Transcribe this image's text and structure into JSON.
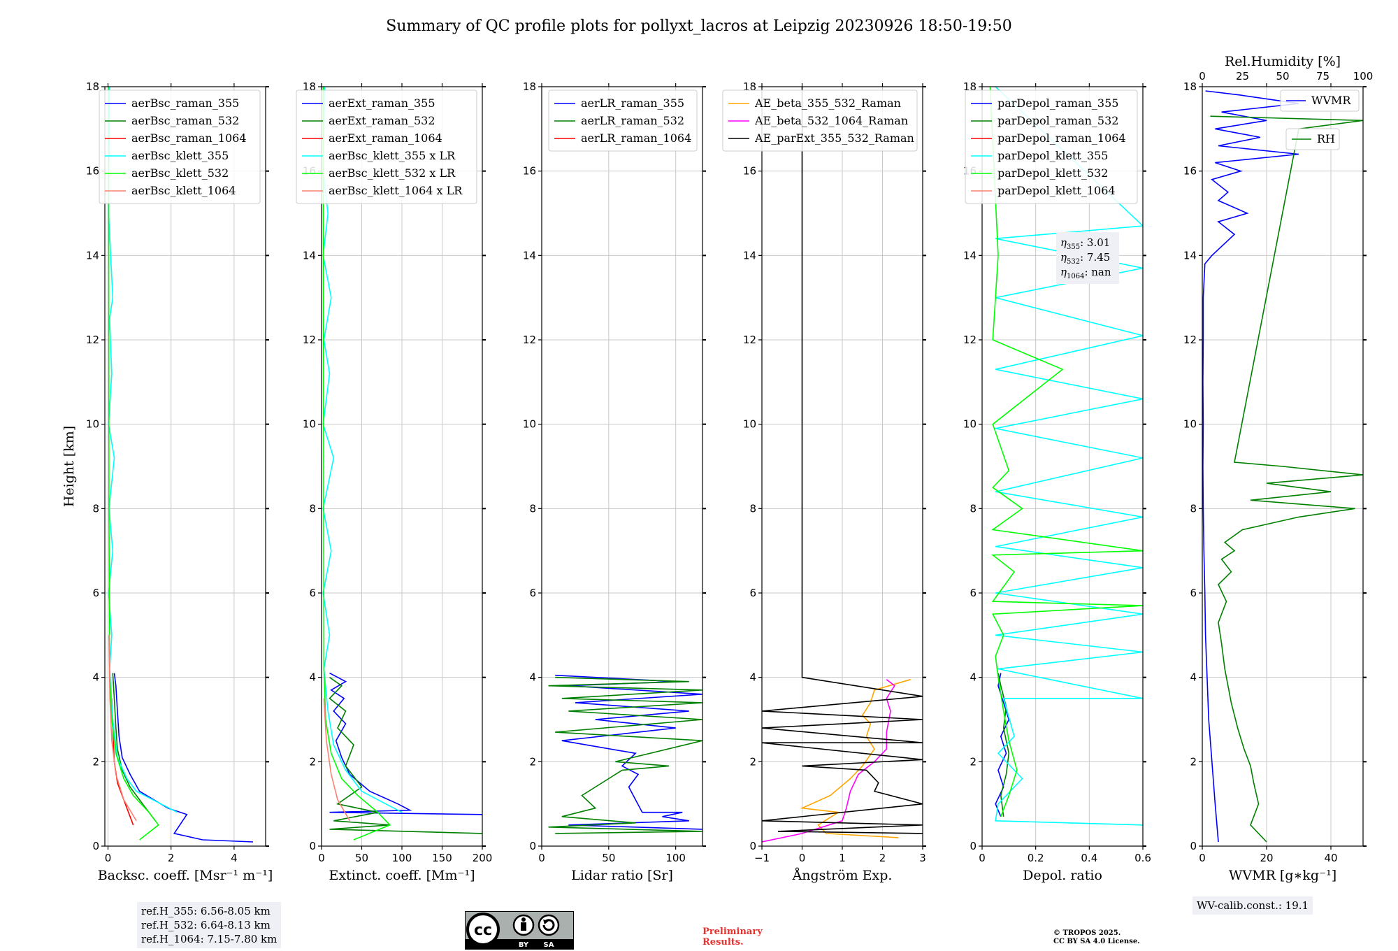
{
  "figure_title": "Summary of QC profile plots for pollyxt_lacros at Leipzig 20230926 18:50-19:50",
  "colors": {
    "blue": "#0000ff",
    "green": "#008000",
    "red": "#ff0000",
    "cyan": "#00ffff",
    "lime": "#00ff00",
    "salmon": "#fa8072",
    "orange": "#ffa500",
    "magenta": "#ff00ff",
    "black": "#000000",
    "grid": "#c8c8c8"
  },
  "chart_data": [
    {
      "type": "line",
      "xlabel": "Backsc. coeff. [Msr⁻¹ m⁻¹]",
      "ylabel": "Height [km]",
      "xlim": [
        -0.1,
        5
      ],
      "ylim": [
        0,
        18
      ],
      "xticks": [
        0,
        2,
        4
      ],
      "yticks": [
        0,
        2,
        4,
        6,
        8,
        10,
        12,
        14,
        16,
        18
      ],
      "legend_position": "top-right",
      "series": [
        {
          "name": "aerBsc_raman_355",
          "color": "#0000ff",
          "x": [
            4.6,
            3.0,
            2.1,
            2.5,
            1.9,
            1.0,
            0.7,
            0.45,
            0.35,
            0.3,
            0.25,
            0.2
          ],
          "y": [
            0.1,
            0.15,
            0.3,
            0.75,
            0.9,
            1.3,
            1.7,
            2.1,
            2.6,
            3.2,
            3.8,
            4.1
          ]
        },
        {
          "name": "aerBsc_raman_532",
          "color": "#008000",
          "x": [
            1.5,
            1.1,
            0.7,
            0.45,
            0.3,
            0.25,
            0.2,
            0.15
          ],
          "y": [
            0.6,
            1.0,
            1.4,
            1.8,
            2.3,
            2.8,
            3.5,
            4.1
          ]
        },
        {
          "name": "aerBsc_raman_1064",
          "color": "#ff0000",
          "x": [
            0.8,
            0.55,
            0.3,
            0.2,
            0.15,
            0.12
          ],
          "y": [
            0.5,
            1.0,
            1.5,
            2.0,
            2.8,
            3.5
          ]
        },
        {
          "name": "aerBsc_klett_355",
          "color": "#00ffff",
          "x": [
            2.2,
            0.9,
            0.6,
            0.3,
            0.15,
            0.05,
            0.12,
            0.02,
            0.15,
            0.03,
            0.2,
            0.02,
            0.12,
            0.05,
            0.15,
            0.02,
            0.05
          ],
          "y": [
            0.8,
            1.3,
            1.6,
            2.1,
            3.0,
            4.2,
            5.0,
            6.0,
            7.0,
            8.0,
            9.2,
            10.0,
            11.2,
            12.5,
            13.0,
            15.0,
            18.0
          ]
        },
        {
          "name": "aerBsc_klett_532",
          "color": "#00ff00",
          "x": [
            1.0,
            1.6,
            1.3,
            0.8,
            0.5,
            0.25,
            0.12,
            0.05,
            0.03,
            0.02
          ],
          "y": [
            0.15,
            0.5,
            0.8,
            1.2,
            1.6,
            2.2,
            3.0,
            4.2,
            8.0,
            18.0
          ]
        },
        {
          "name": "aerBsc_klett_1064",
          "color": "#fa8072",
          "x": [
            0.9,
            0.5,
            0.25,
            0.12,
            0.06,
            0.03
          ],
          "y": [
            0.6,
            1.1,
            1.7,
            2.5,
            3.5,
            5.0
          ]
        }
      ]
    },
    {
      "type": "line",
      "xlabel": "Extinct. coeff. [Mm⁻¹]",
      "xlim": [
        0,
        200
      ],
      "ylim": [
        0,
        18
      ],
      "xticks": [
        0,
        50,
        100,
        150,
        200
      ],
      "yticks": [
        0,
        2,
        4,
        6,
        8,
        10,
        12,
        14,
        16,
        18
      ],
      "legend_position": "top-right",
      "series": [
        {
          "name": "aerExt_raman_355",
          "color": "#0000ff",
          "x": [
            200,
            10,
            110,
            95,
            60,
            35,
            25,
            18,
            30,
            15,
            28,
            12,
            30,
            10
          ],
          "y": [
            0.75,
            0.8,
            0.85,
            1.0,
            1.3,
            1.7,
            2.1,
            2.5,
            2.9,
            3.2,
            3.5,
            3.7,
            3.9,
            4.1
          ]
        },
        {
          "name": "aerExt_raman_532",
          "color": "#008000",
          "x": [
            200,
            10,
            85,
            15,
            70,
            20,
            50,
            30,
            40,
            20,
            30,
            10,
            25,
            10
          ],
          "y": [
            0.3,
            0.4,
            0.5,
            0.6,
            0.8,
            1.0,
            1.4,
            1.9,
            2.4,
            2.8,
            3.2,
            3.5,
            3.8,
            4.0
          ]
        },
        {
          "name": "aerExt_raman_1064",
          "color": "#ff0000",
          "x": [],
          "y": []
        },
        {
          "name": "aerBsc_klett_355 x LR",
          "color": "#00ffff",
          "x": [
            100,
            50,
            30,
            15,
            8,
            3,
            10,
            2,
            12,
            2,
            15,
            2,
            10,
            3,
            12,
            2,
            8,
            2,
            4
          ],
          "y": [
            0.8,
            1.3,
            1.8,
            2.4,
            3.2,
            4.2,
            5.0,
            6.0,
            7.0,
            8.0,
            9.2,
            10.0,
            11.2,
            12.0,
            13.0,
            14.0,
            15.0,
            16.0,
            18.0
          ]
        },
        {
          "name": "aerBsc_klett_532 x LR",
          "color": "#00ff00",
          "x": [
            40,
            85,
            70,
            45,
            25,
            12,
            5,
            3,
            2
          ],
          "y": [
            0.15,
            0.5,
            0.8,
            1.2,
            1.6,
            2.2,
            3.0,
            4.2,
            18.0
          ]
        },
        {
          "name": "aerBsc_klett_1064 x LR",
          "color": "#fa8072",
          "x": [
            35,
            20,
            12,
            6,
            3
          ],
          "y": [
            0.6,
            1.1,
            1.7,
            2.5,
            3.5
          ]
        }
      ]
    },
    {
      "type": "line",
      "xlabel": "Lidar ratio [Sr]",
      "xlim": [
        0,
        120
      ],
      "ylim": [
        0,
        18
      ],
      "xticks": [
        0,
        50,
        100
      ],
      "yticks": [
        0,
        2,
        4,
        6,
        8,
        10,
        12,
        14,
        16,
        18
      ],
      "legend_position": "top-right",
      "series": [
        {
          "name": "aerLR_raman_355",
          "color": "#0000ff",
          "x": [
            120,
            20,
            110,
            90,
            105,
            75,
            70,
            65,
            72,
            60,
            70,
            15,
            100,
            40,
            110,
            25,
            120,
            20,
            100,
            10
          ],
          "y": [
            0.4,
            0.5,
            0.6,
            0.7,
            0.8,
            0.8,
            1.1,
            1.4,
            1.7,
            1.9,
            2.2,
            2.5,
            2.8,
            3.0,
            3.2,
            3.4,
            3.6,
            3.8,
            3.9,
            4.05
          ]
        },
        {
          "name": "aerLR_raman_532",
          "color": "#008000",
          "x": [
            10,
            120,
            5,
            70,
            15,
            40,
            30,
            45,
            60,
            95,
            55,
            120,
            10,
            120,
            20,
            120,
            15,
            120,
            5,
            110,
            10
          ],
          "y": [
            0.3,
            0.35,
            0.45,
            0.55,
            0.7,
            0.9,
            1.2,
            1.5,
            1.8,
            1.9,
            2.0,
            2.5,
            2.7,
            3.0,
            3.2,
            3.4,
            3.5,
            3.7,
            3.8,
            3.9,
            4.0
          ]
        },
        {
          "name": "aerLR_raman_1064",
          "color": "#ff0000",
          "x": [],
          "y": []
        }
      ]
    },
    {
      "type": "line",
      "xlabel": "Ångström Exp.",
      "xlim": [
        -1,
        3
      ],
      "ylim": [
        0,
        18
      ],
      "xticks": [
        -1,
        0,
        1,
        2,
        3
      ],
      "yticks": [
        0,
        2,
        4,
        6,
        8,
        10,
        12,
        14,
        16,
        18
      ],
      "legend_position": "top-right",
      "series": [
        {
          "name": "AE_beta_355_532_Raman",
          "color": "#ffa500",
          "x": [
            2.4,
            0.6,
            0.4,
            0.9,
            0.0,
            0.7,
            1.2,
            1.5,
            1.8,
            1.6,
            1.7,
            1.5,
            1.7,
            1.8,
            2.7
          ],
          "y": [
            0.2,
            0.3,
            0.5,
            0.8,
            0.9,
            1.2,
            1.6,
            1.9,
            2.3,
            2.6,
            2.9,
            3.1,
            3.4,
            3.7,
            3.95
          ]
        },
        {
          "name": "AE_beta_532_1064_Raman",
          "color": "#ff00ff",
          "x": [
            -1.0,
            0.0,
            1.0,
            1.1,
            1.2,
            1.4,
            1.8,
            2.1,
            2.1,
            2.2,
            2.1,
            2.3,
            2.1
          ],
          "y": [
            0.1,
            0.3,
            0.6,
            0.9,
            1.3,
            1.7,
            2.0,
            2.3,
            2.7,
            3.2,
            3.5,
            3.8,
            3.95
          ]
        },
        {
          "name": "AE_parExt_355_532_Raman",
          "color": "#000000",
          "x": [
            3.0,
            -0.6,
            3.0,
            -1.0,
            3.0,
            1.8,
            1.9,
            1.6,
            0.0,
            3.0,
            -1.0,
            3.0,
            -1.0,
            3.0,
            -1.0,
            3.0,
            0.0,
            0.0,
            0.0
          ],
          "y": [
            0.3,
            0.35,
            0.5,
            0.6,
            1.0,
            1.3,
            1.5,
            1.8,
            1.9,
            2.05,
            2.45,
            2.45,
            2.8,
            3.0,
            3.2,
            3.55,
            4.0,
            16.0,
            18.0
          ]
        }
      ]
    },
    {
      "type": "line",
      "xlabel": "Depol. ratio",
      "xlim": [
        0,
        0.6
      ],
      "ylim": [
        0,
        18
      ],
      "xticks": [
        0.0,
        0.2,
        0.4,
        0.6
      ],
      "yticks": [
        0,
        2,
        4,
        6,
        8,
        10,
        12,
        14,
        16,
        18
      ],
      "legend_position": "top-right",
      "series": [
        {
          "name": "parDepol_raman_355",
          "color": "#0000ff",
          "x": [
            0.07,
            0.05,
            0.08,
            0.06,
            0.09,
            0.07,
            0.1,
            0.08,
            0.06,
            0.07
          ],
          "y": [
            0.7,
            1.0,
            1.4,
            1.8,
            2.2,
            2.6,
            3.0,
            3.4,
            3.8,
            4.1
          ]
        },
        {
          "name": "parDepol_raman_532",
          "color": "#008000",
          "x": [
            0.08,
            0.07,
            0.09,
            0.1,
            0.08,
            0.09,
            0.07,
            0.06
          ],
          "y": [
            0.7,
            1.2,
            1.7,
            2.2,
            2.8,
            3.3,
            3.8,
            4.1
          ]
        },
        {
          "name": "parDepol_raman_1064",
          "color": "#ff0000",
          "x": [],
          "y": []
        },
        {
          "name": "parDepol_klett_355",
          "color": "#00ffff",
          "x": [
            0.6,
            0.05,
            0.06,
            0.15,
            0.06,
            0.12,
            0.08,
            0.6,
            0.06,
            0.6,
            0.05,
            0.6,
            0.05,
            0.6,
            0.05,
            0.6,
            0.05,
            0.6,
            0.05,
            0.6,
            0.05,
            0.6,
            0.05,
            0.6,
            0.05,
            0.6,
            0.05
          ],
          "y": [
            0.5,
            0.6,
            1.0,
            1.6,
            2.2,
            2.6,
            3.5,
            3.5,
            4.2,
            4.6,
            5.0,
            5.5,
            6.0,
            6.6,
            7.1,
            7.8,
            8.4,
            9.2,
            9.9,
            10.6,
            11.3,
            12.1,
            13.0,
            13.7,
            14.4,
            14.7,
            18.0
          ]
        },
        {
          "name": "parDepol_klett_532",
          "color": "#00ff00",
          "x": [
            0.07,
            0.1,
            0.13,
            0.1,
            0.08,
            0.06,
            0.05,
            0.08,
            0.04,
            0.6,
            0.04,
            0.12,
            0.04,
            0.6,
            0.04,
            0.15,
            0.04,
            0.1,
            0.04,
            0.3,
            0.04,
            0.06,
            0.03
          ],
          "y": [
            0.7,
            1.2,
            1.8,
            2.5,
            3.2,
            4.0,
            4.5,
            5.0,
            5.5,
            5.7,
            5.8,
            6.5,
            6.9,
            7.0,
            7.5,
            8.0,
            8.5,
            8.9,
            10.0,
            11.3,
            12.0,
            14.0,
            18.0
          ]
        },
        {
          "name": "parDepol_klett_1064",
          "color": "#fa8072",
          "x": [],
          "y": []
        }
      ],
      "annotation": {
        "eta355": "3.01",
        "eta532": "7.45",
        "eta1064": "nan"
      }
    },
    {
      "type": "line",
      "xlabel": "WVMR [g∗kg⁻¹]",
      "x2label": "Rel.Humidity [%]",
      "xlim": [
        0,
        50
      ],
      "x2lim": [
        0,
        100
      ],
      "ylim": [
        0,
        18
      ],
      "xticks": [
        0,
        20,
        40
      ],
      "x2ticks": [
        0,
        25,
        50,
        75,
        100
      ],
      "yticks": [
        0,
        2,
        4,
        6,
        8,
        10,
        12,
        14,
        16,
        18
      ],
      "legend_position": "top-right",
      "series": [
        {
          "name": "WVMR",
          "color": "#0000ff",
          "axis": "x",
          "x": [
            5.0,
            4.0,
            3.0,
            2.0,
            1.5,
            1.0,
            0.8,
            0.5,
            0.3,
            0.2,
            0.3,
            0.2,
            0.3,
            0.3,
            0.8,
            3.0,
            10,
            5.0,
            14,
            5.0,
            8.0,
            3.0,
            12,
            4.0,
            30,
            5.0,
            18,
            4.0,
            20,
            6.0,
            30,
            12,
            1.0
          ],
          "y": [
            0.1,
            1.0,
            2.0,
            3.0,
            4.0,
            5.0,
            6.0,
            7.0,
            8.0,
            9.0,
            10,
            11,
            12,
            13,
            13.8,
            14.0,
            14.5,
            14.8,
            15.0,
            15.3,
            15.5,
            15.8,
            16.0,
            16.2,
            16.4,
            16.6,
            16.8,
            17.0,
            17.2,
            17.4,
            17.6,
            17.8,
            17.9
          ]
        },
        {
          "name": "RH",
          "color": "#008000",
          "axis": "x2",
          "x": [
            40,
            30,
            35,
            32,
            30,
            26,
            22,
            18,
            16,
            14,
            12,
            10,
            15,
            10,
            18,
            12,
            20,
            14,
            25,
            60,
            95,
            30,
            80,
            40,
            100,
            50,
            20,
            60,
            100,
            5
          ],
          "y": [
            0.1,
            0.5,
            1.0,
            1.5,
            1.9,
            2.3,
            2.8,
            3.4,
            3.8,
            4.2,
            4.8,
            5.3,
            5.8,
            6.2,
            6.5,
            6.8,
            7.0,
            7.2,
            7.5,
            7.8,
            8.0,
            8.2,
            8.4,
            8.6,
            8.8,
            9.0,
            9.1,
            17.0,
            17.2,
            17.3
          ]
        }
      ]
    }
  ],
  "ref_box": [
    "ref.H_355: 6.56-8.05 km",
    "ref.H_532: 6.64-8.13 km",
    "ref.H_1064: 7.15-7.80 km"
  ],
  "wv_box": "WV-calib.const.: 19.1",
  "cc_logo": {
    "symbol": "cc",
    "by": "BY",
    "sa": "SA"
  },
  "preliminary": [
    "Preliminary",
    "Results."
  ],
  "copyright": [
    "© TROPOS 2025.",
    "CC BY SA 4.0 License."
  ]
}
